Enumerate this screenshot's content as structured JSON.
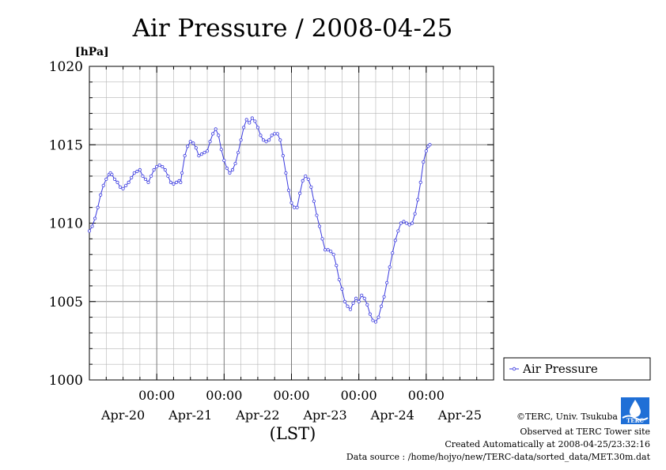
{
  "chart_data": {
    "type": "line",
    "title": "Air Pressure / 2008-04-25",
    "ylabel": "[hPa]",
    "xlabel": "(LST)",
    "ylim": [
      1000,
      1020
    ],
    "yticks": [
      1000,
      1005,
      1010,
      1015,
      1020
    ],
    "ytick_labels": [
      "1000",
      "1005",
      "1010",
      "1015",
      "1020"
    ],
    "xlim_hours": [
      -12,
      132
    ],
    "time_ticks": [
      {
        "hour": 12,
        "label": "00:00"
      },
      {
        "hour": 36,
        "label": "00:00"
      },
      {
        "hour": 60,
        "label": "00:00"
      },
      {
        "hour": 84,
        "label": "00:00"
      },
      {
        "hour": 108,
        "label": "00:00"
      }
    ],
    "day_labels": [
      {
        "hour": 0,
        "label": "Apr-20"
      },
      {
        "hour": 24,
        "label": "Apr-21"
      },
      {
        "hour": 48,
        "label": "Apr-22"
      },
      {
        "hour": 72,
        "label": "Apr-23"
      },
      {
        "hour": 96,
        "label": "Apr-24"
      },
      {
        "hour": 120,
        "label": "Apr-25"
      }
    ],
    "grid": true,
    "legend_position": "right",
    "series": [
      {
        "name": "Air Pressure",
        "color": "#3a3adf",
        "marker": "circle",
        "points": [
          [
            -12,
            1009.5
          ],
          [
            -11,
            1009.8
          ],
          [
            -10,
            1010.3
          ],
          [
            -9,
            1011.0
          ],
          [
            -8,
            1011.8
          ],
          [
            -7,
            1012.4
          ],
          [
            -6,
            1012.8
          ],
          [
            -5,
            1013.1
          ],
          [
            -4.5,
            1013.2
          ],
          [
            -4,
            1013.1
          ],
          [
            -3,
            1012.8
          ],
          [
            -2,
            1012.6
          ],
          [
            -1,
            1012.3
          ],
          [
            0,
            1012.2
          ],
          [
            1,
            1012.4
          ],
          [
            2,
            1012.6
          ],
          [
            3,
            1012.9
          ],
          [
            4,
            1013.2
          ],
          [
            5,
            1013.3
          ],
          [
            6,
            1013.4
          ],
          [
            7,
            1013.0
          ],
          [
            8,
            1012.8
          ],
          [
            9,
            1012.6
          ],
          [
            10,
            1013.0
          ],
          [
            11,
            1013.4
          ],
          [
            12,
            1013.6
          ],
          [
            13,
            1013.7
          ],
          [
            14,
            1013.6
          ],
          [
            15,
            1013.4
          ],
          [
            16,
            1013.0
          ],
          [
            17,
            1012.6
          ],
          [
            18,
            1012.5
          ],
          [
            19,
            1012.6
          ],
          [
            20,
            1012.7
          ],
          [
            20.5,
            1012.6
          ],
          [
            21,
            1013.2
          ],
          [
            22,
            1014.3
          ],
          [
            23,
            1014.9
          ],
          [
            24,
            1015.2
          ],
          [
            25,
            1015.1
          ],
          [
            26,
            1014.8
          ],
          [
            27,
            1014.3
          ],
          [
            28,
            1014.4
          ],
          [
            29,
            1014.5
          ],
          [
            30,
            1014.6
          ],
          [
            31,
            1015.2
          ],
          [
            32,
            1015.7
          ],
          [
            33,
            1016.0
          ],
          [
            34,
            1015.6
          ],
          [
            35,
            1014.7
          ],
          [
            36,
            1014.0
          ],
          [
            37,
            1013.5
          ],
          [
            38,
            1013.2
          ],
          [
            39,
            1013.4
          ],
          [
            40,
            1013.8
          ],
          [
            41,
            1014.5
          ],
          [
            42,
            1015.3
          ],
          [
            43,
            1016.1
          ],
          [
            44,
            1016.6
          ],
          [
            45,
            1016.4
          ],
          [
            46,
            1016.7
          ],
          [
            47,
            1016.5
          ],
          [
            48,
            1016.1
          ],
          [
            49,
            1015.6
          ],
          [
            50,
            1015.3
          ],
          [
            51,
            1015.2
          ],
          [
            52,
            1015.3
          ],
          [
            53,
            1015.6
          ],
          [
            54,
            1015.7
          ],
          [
            55,
            1015.7
          ],
          [
            56,
            1015.3
          ],
          [
            57,
            1014.3
          ],
          [
            58,
            1013.2
          ],
          [
            59,
            1012.1
          ],
          [
            60,
            1011.3
          ],
          [
            61,
            1011.0
          ],
          [
            62,
            1011.0
          ],
          [
            63,
            1011.9
          ],
          [
            64,
            1012.7
          ],
          [
            65,
            1013.0
          ],
          [
            66,
            1012.8
          ],
          [
            67,
            1012.3
          ],
          [
            68,
            1011.4
          ],
          [
            69,
            1010.5
          ],
          [
            70,
            1009.8
          ],
          [
            71,
            1009.0
          ],
          [
            72,
            1008.3
          ],
          [
            73,
            1008.3
          ],
          [
            74,
            1008.2
          ],
          [
            75,
            1008.0
          ],
          [
            76,
            1007.3
          ],
          [
            77,
            1006.4
          ],
          [
            78,
            1005.8
          ],
          [
            79,
            1005.0
          ],
          [
            80,
            1004.7
          ],
          [
            81,
            1004.5
          ],
          [
            82,
            1004.9
          ],
          [
            83,
            1005.2
          ],
          [
            84,
            1005.0
          ],
          [
            85,
            1005.4
          ],
          [
            86,
            1005.2
          ],
          [
            87,
            1004.8
          ],
          [
            88,
            1004.2
          ],
          [
            89,
            1003.8
          ],
          [
            90,
            1003.7
          ],
          [
            91,
            1004.0
          ],
          [
            92,
            1004.7
          ],
          [
            93,
            1005.3
          ],
          [
            94,
            1006.2
          ],
          [
            95,
            1007.2
          ],
          [
            96,
            1008.1
          ],
          [
            97,
            1008.9
          ],
          [
            98,
            1009.5
          ],
          [
            99,
            1010.0
          ],
          [
            100,
            1010.1
          ],
          [
            101,
            1010.0
          ],
          [
            102,
            1009.9
          ],
          [
            103,
            1010.0
          ],
          [
            104,
            1010.6
          ],
          [
            105,
            1011.5
          ],
          [
            106,
            1012.6
          ],
          [
            107,
            1013.9
          ],
          [
            108,
            1014.6
          ],
          [
            108.7,
            1014.9
          ],
          [
            109.3,
            1015.0
          ]
        ]
      }
    ]
  },
  "credits": {
    "copyright": "©TERC, Univ. Tsukuba",
    "observed": "Observed at TERC Tower site",
    "created": "Created Automatically at 2008-04-25/23:32:16",
    "source": "Data source : /home/hojyo/new/TERC-data/sorted_data/MET.30m.dat",
    "logo_text": "TERC"
  }
}
